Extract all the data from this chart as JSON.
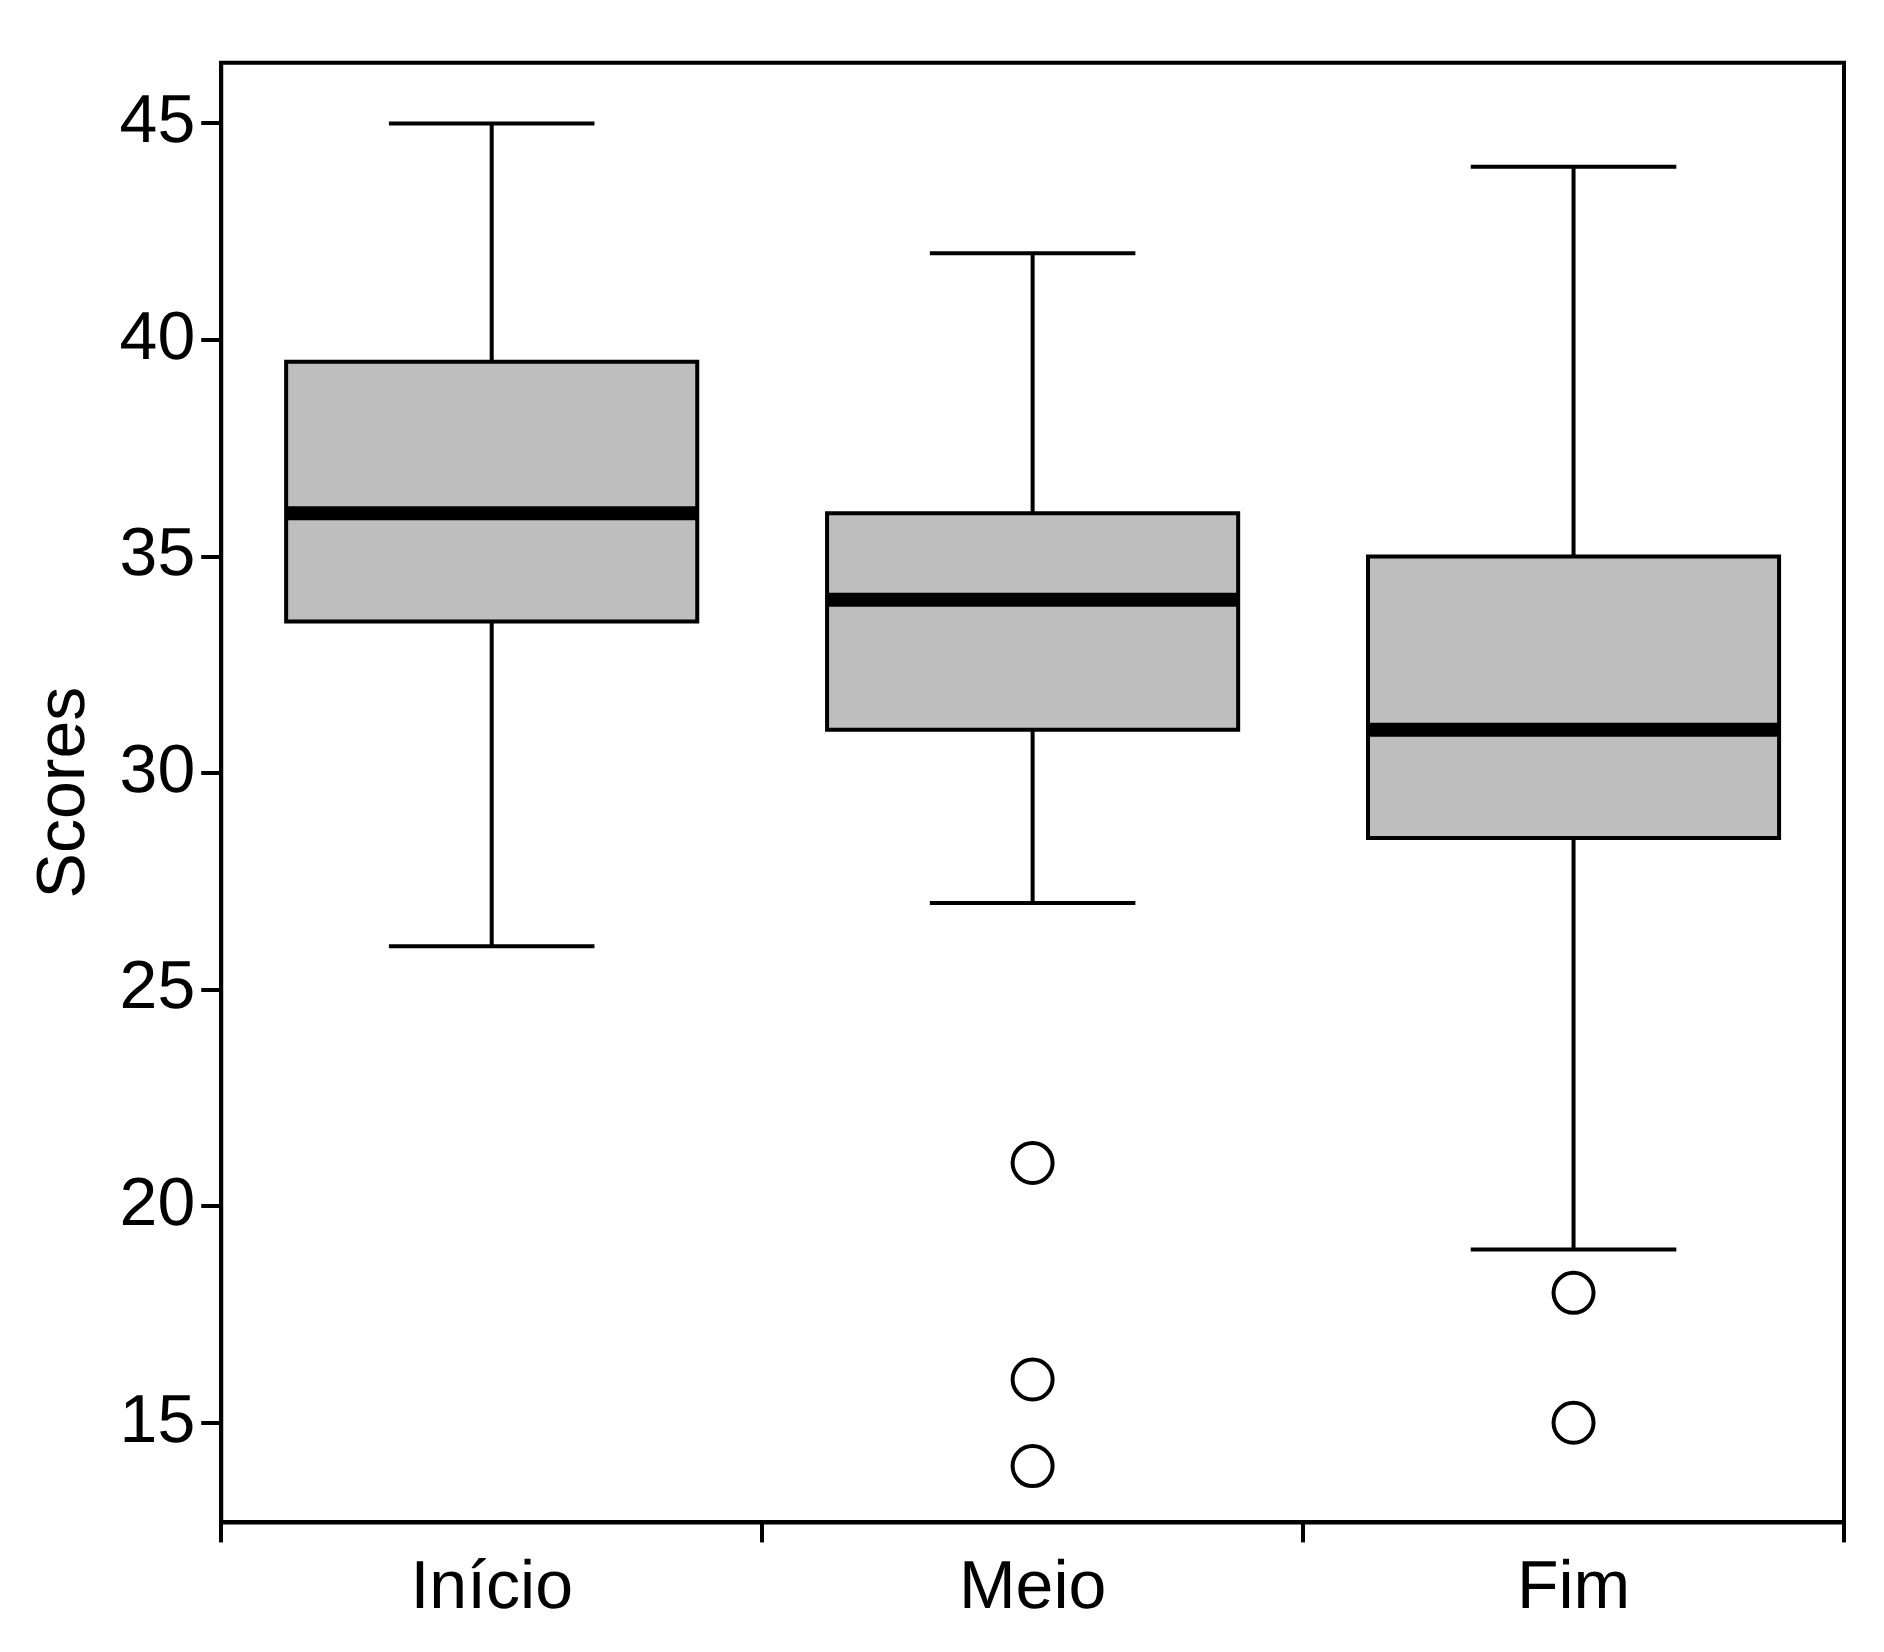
{
  "chart_data": {
    "type": "box",
    "ylabel": "Scores",
    "categories": [
      "Início",
      "Meio",
      "Fim"
    ],
    "color": "#bebebe",
    "boxes": [
      {
        "low": 26,
        "q1": 33.5,
        "median": 36,
        "q3": 39.5,
        "high": 45
      },
      {
        "low": 27,
        "q1": 31,
        "median": 34,
        "q3": 36,
        "high": 42,
        "outliers": [
          21,
          16,
          14
        ]
      },
      {
        "low": 19,
        "q1": 28.5,
        "median": 31,
        "q3": 35,
        "high": 44,
        "outliers": [
          18,
          15
        ]
      }
    ],
    "ylim": [
      12.7,
      46.4
    ],
    "yticks": [
      15,
      20,
      25,
      30,
      35,
      40,
      45
    ]
  }
}
